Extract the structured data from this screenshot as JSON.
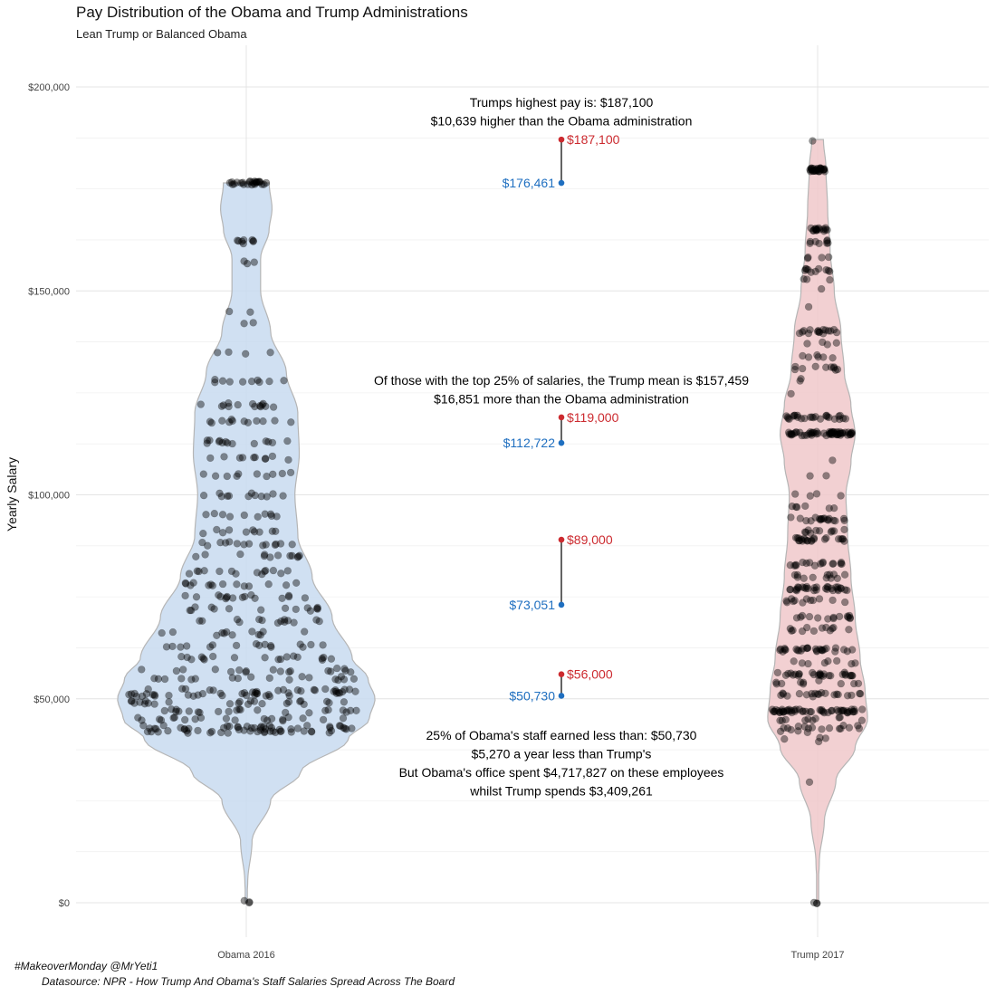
{
  "title": "Pay Distribution of the Obama and Trump Administrations",
  "subtitle": "Lean Trump or Balanced Obama",
  "footer": {
    "line1": "#MakeoverMonday @MrYeti1",
    "line2": "Datasource: NPR - How Trump And Obama's Staff Salaries Spread Across The Board"
  },
  "colors": {
    "obama": "#1f6fc0",
    "trump": "#cc2a2f",
    "obama_fill": "#c8dbf0",
    "trump_fill": "#f0c8ca"
  },
  "chart_data": {
    "type": "violin",
    "ylabel": "Yearly Salary",
    "ylim": [
      -10000,
      210000
    ],
    "yticks": [
      0,
      50000,
      100000,
      150000,
      200000
    ],
    "ytick_labels": [
      "$0",
      "$50,000",
      "$100,000",
      "$150,000",
      "$200,000"
    ],
    "categories": [
      "Obama 2016",
      "Trump 2017"
    ],
    "series": [
      {
        "name": "Obama 2016",
        "max": 176461,
        "min": 0,
        "density_profile": [
          [
            0,
            0.0
          ],
          [
            5000,
            0.01
          ],
          [
            15000,
            0.04
          ],
          [
            25000,
            0.17
          ],
          [
            32000,
            0.38
          ],
          [
            40000,
            0.71
          ],
          [
            45000,
            0.86
          ],
          [
            50000,
            0.9
          ],
          [
            55000,
            0.85
          ],
          [
            60000,
            0.74
          ],
          [
            70000,
            0.6
          ],
          [
            80000,
            0.46
          ],
          [
            90000,
            0.36
          ],
          [
            100000,
            0.34
          ],
          [
            110000,
            0.37
          ],
          [
            120000,
            0.36
          ],
          [
            130000,
            0.28
          ],
          [
            140000,
            0.17
          ],
          [
            150000,
            0.1
          ],
          [
            158000,
            0.1
          ],
          [
            165000,
            0.16
          ],
          [
            170000,
            0.18
          ],
          [
            176461,
            0.16
          ]
        ]
      },
      {
        "name": "Trump 2017",
        "max": 187100,
        "min": 0,
        "density_profile": [
          [
            0,
            0.0
          ],
          [
            5000,
            0.01
          ],
          [
            10000,
            0.02
          ],
          [
            20000,
            0.08
          ],
          [
            30000,
            0.22
          ],
          [
            38000,
            0.45
          ],
          [
            45000,
            0.6
          ],
          [
            52000,
            0.57
          ],
          [
            60000,
            0.51
          ],
          [
            70000,
            0.45
          ],
          [
            80000,
            0.4
          ],
          [
            90000,
            0.36
          ],
          [
            100000,
            0.34
          ],
          [
            108000,
            0.4
          ],
          [
            115000,
            0.45
          ],
          [
            122000,
            0.4
          ],
          [
            130000,
            0.32
          ],
          [
            140000,
            0.28
          ],
          [
            150000,
            0.2
          ],
          [
            160000,
            0.15
          ],
          [
            170000,
            0.12
          ],
          [
            180000,
            0.1
          ],
          [
            187100,
            0.07
          ]
        ]
      }
    ],
    "dumbbells": [
      {
        "obama": 176461,
        "trump": 187100,
        "obama_label": "$176,461",
        "trump_label": "$187,100"
      },
      {
        "obama": 112722,
        "trump": 119000,
        "obama_label": "$112,722",
        "trump_label": "$119,000"
      },
      {
        "obama": 73051,
        "trump": 89000,
        "obama_label": "$73,051",
        "trump_label": "$89,000"
      },
      {
        "obama": 50730,
        "trump": 56000,
        "obama_label": "$50,730",
        "trump_label": "$56,000"
      }
    ],
    "annotations": [
      {
        "lines": [
          "Trumps highest pay is: $187,100",
          "$10,639 higher than the Obama administration"
        ]
      },
      {
        "lines": [
          "Of those with the top 25% of salaries, the Trump mean is $157,459",
          "$16,851 more than the Obama administration"
        ]
      },
      {
        "lines": [
          "25% of Obama's staff earned less than: $50,730",
          "$5,270 a year less than Trump's",
          "But Obama's office spent $4,717,827 on these employees",
          "whilst Trump spends $3,409,261"
        ]
      }
    ],
    "points": {
      "obama": {
        "clusters": [
          [
            176461,
            25
          ],
          [
            162000,
            8
          ],
          [
            157000,
            3
          ],
          [
            145000,
            2
          ],
          [
            142000,
            2
          ],
          [
            135000,
            4
          ],
          [
            128000,
            10
          ],
          [
            122000,
            14
          ],
          [
            118000,
            12
          ],
          [
            113000,
            14
          ],
          [
            109000,
            10
          ],
          [
            105000,
            10
          ],
          [
            100000,
            12
          ],
          [
            95000,
            10
          ],
          [
            91000,
            10
          ],
          [
            88000,
            14
          ],
          [
            85000,
            12
          ],
          [
            81000,
            14
          ],
          [
            78000,
            14
          ],
          [
            75000,
            16
          ],
          [
            72000,
            14
          ],
          [
            69000,
            14
          ],
          [
            66000,
            12
          ],
          [
            63000,
            16
          ],
          [
            60000,
            18
          ],
          [
            57000,
            18
          ],
          [
            55000,
            18
          ],
          [
            52000,
            22
          ],
          [
            51000,
            30
          ],
          [
            49000,
            24
          ],
          [
            47000,
            22
          ],
          [
            45000,
            20
          ],
          [
            43000,
            34
          ],
          [
            42000,
            30
          ],
          [
            0,
            3
          ]
        ]
      },
      "trump": {
        "clusters": [
          [
            187100,
            1
          ],
          [
            179700,
            28
          ],
          [
            165000,
            16
          ],
          [
            162000,
            8
          ],
          [
            158000,
            4
          ],
          [
            155000,
            10
          ],
          [
            153000,
            3
          ],
          [
            150000,
            1
          ],
          [
            146000,
            1
          ],
          [
            140000,
            16
          ],
          [
            137000,
            4
          ],
          [
            134000,
            6
          ],
          [
            131000,
            10
          ],
          [
            128000,
            2
          ],
          [
            125000,
            1
          ],
          [
            119000,
            26
          ],
          [
            115000,
            58
          ],
          [
            108000,
            1
          ],
          [
            105000,
            2
          ],
          [
            100000,
            4
          ],
          [
            97000,
            6
          ],
          [
            94000,
            18
          ],
          [
            91000,
            10
          ],
          [
            89000,
            22
          ],
          [
            83000,
            16
          ],
          [
            80000,
            12
          ],
          [
            77000,
            30
          ],
          [
            74000,
            12
          ],
          [
            70000,
            14
          ],
          [
            67000,
            12
          ],
          [
            62000,
            28
          ],
          [
            59000,
            8
          ],
          [
            56000,
            28
          ],
          [
            54000,
            10
          ],
          [
            51000,
            20
          ],
          [
            47000,
            52
          ],
          [
            45000,
            10
          ],
          [
            43000,
            14
          ],
          [
            42000,
            4
          ],
          [
            40000,
            4
          ],
          [
            30000,
            1
          ],
          [
            0,
            3
          ]
        ]
      }
    }
  }
}
